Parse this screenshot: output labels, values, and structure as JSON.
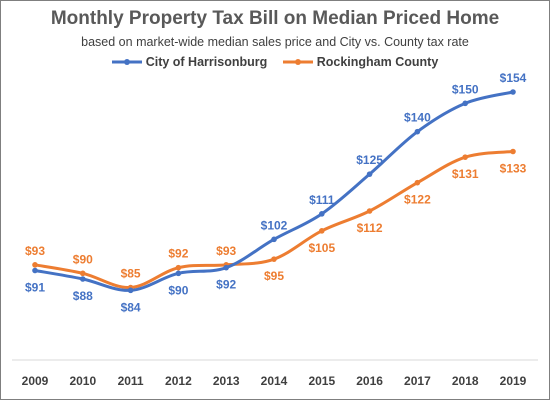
{
  "chart_data": {
    "type": "line",
    "title": "Monthly Property Tax Bill on Median Priced Home",
    "subtitle": "based on market-wide median sales price and City vs. County tax rate",
    "xlabel": "",
    "ylabel": "",
    "x": [
      "2009",
      "2010",
      "2011",
      "2012",
      "2013",
      "2014",
      "2015",
      "2016",
      "2017",
      "2018",
      "2019"
    ],
    "series": [
      {
        "name": "City of Harrisonburg",
        "color": "#4472c4",
        "values": [
          91,
          88,
          84,
          90,
          92,
          102,
          111,
          125,
          140,
          150,
          154
        ],
        "labels": [
          "$91",
          "$88",
          "$84",
          "$90",
          "$92",
          "$102",
          "$111",
          "$125",
          "$140",
          "$150",
          "$154"
        ]
      },
      {
        "name": "Rockingham County",
        "color": "#ed7d31",
        "values": [
          93,
          90,
          85,
          92,
          93,
          95,
          105,
          112,
          122,
          131,
          133
        ],
        "labels": [
          "$93",
          "$90",
          "$85",
          "$92",
          "$93",
          "$95",
          "$105",
          "$112",
          "$122",
          "$131",
          "$133"
        ]
      }
    ],
    "ylim": [
      70,
      160
    ],
    "grid": false,
    "legend_position": "top-center",
    "smooth": true
  }
}
